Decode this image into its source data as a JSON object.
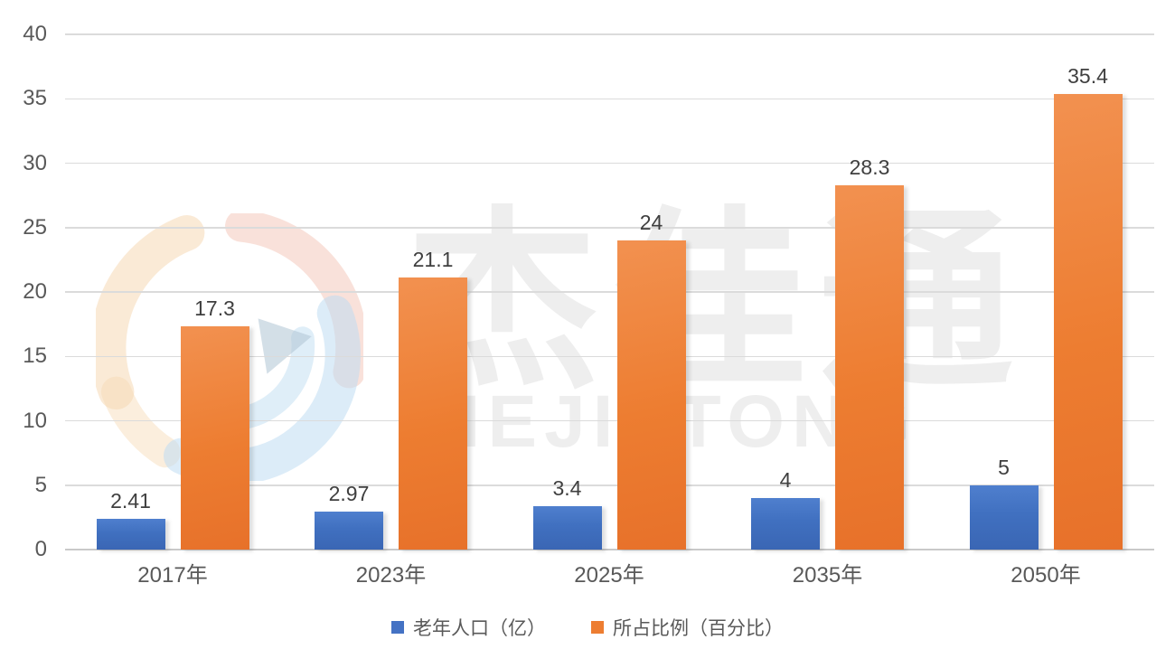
{
  "watermark": {
    "cn": "杰佳通",
    "en": "JIEJIATONG"
  },
  "colors": {
    "series_blue": "#4472C4",
    "series_orange": "#ED7D31",
    "gridline": "#DBDBDB",
    "axis_text": "#595959",
    "value_text": "#3F3F3F",
    "background": "#FFFFFF"
  },
  "chart_data": {
    "type": "bar",
    "title": "",
    "categories": [
      "2017年",
      "2023年",
      "2025年",
      "2035年",
      "2050年"
    ],
    "series": [
      {
        "name": "老年人口（亿）",
        "color": "#4472C4",
        "values": [
          2.41,
          2.97,
          3.4,
          4,
          5
        ]
      },
      {
        "name": "所占比例（百分比）",
        "color": "#ED7D31",
        "values": [
          17.3,
          21.1,
          24,
          28.3,
          35.4
        ]
      }
    ],
    "xlabel": "",
    "ylabel": "",
    "ylim": [
      0,
      40
    ],
    "ytick_step": 5,
    "yticks": [
      0,
      5,
      10,
      15,
      20,
      25,
      30,
      35,
      40
    ],
    "grid": true,
    "legend_position": "bottom"
  }
}
